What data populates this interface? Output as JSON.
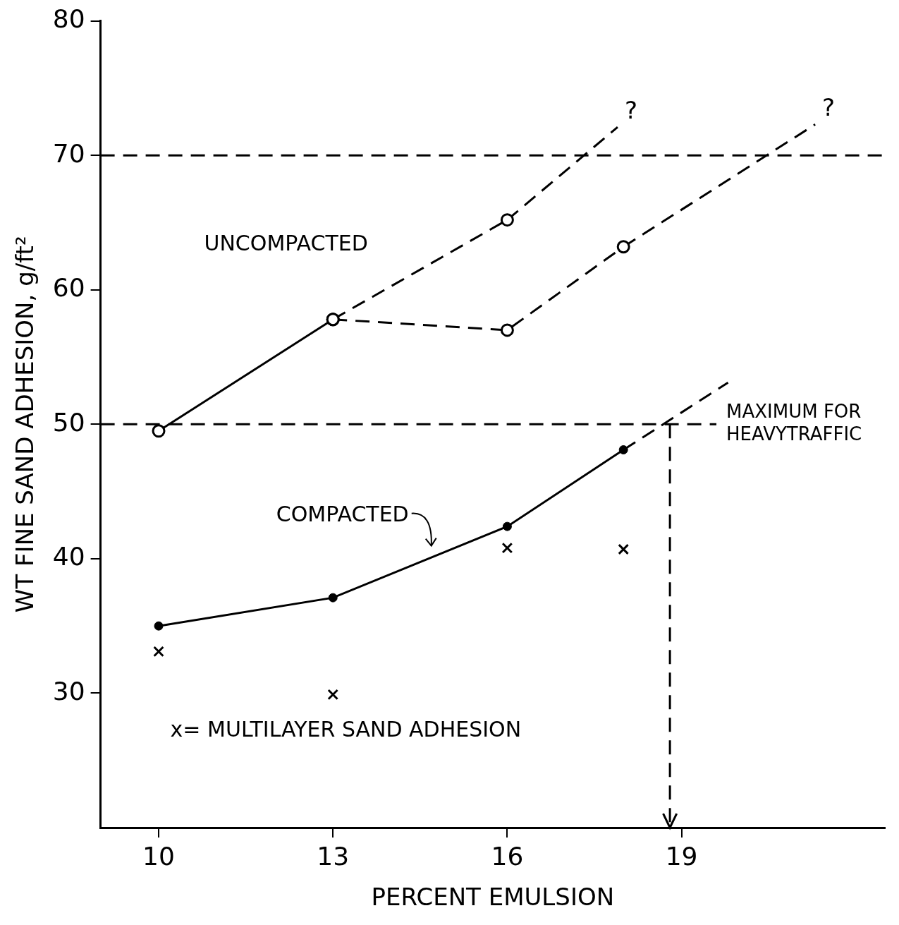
{
  "chart_data": {
    "type": "line",
    "x_label": "PERCENT EMULSION",
    "y_label": "WT FINE SAND ADHESION, g/ft²",
    "xlim": [
      9,
      22.5
    ],
    "ylim": [
      20,
      80
    ],
    "xticks": [
      10,
      13,
      16,
      19
    ],
    "yticks": [
      30,
      40,
      50,
      60,
      70,
      80
    ],
    "grid": false,
    "color": "#000000",
    "series": [
      {
        "x": [
          10,
          13
        ],
        "values": [
          49.5,
          57.8
        ],
        "marker": "open_circle",
        "line_style": "solid"
      },
      {
        "x": [
          13,
          16
        ],
        "values": [
          57.8,
          65.2
        ],
        "marker": "open_circle",
        "line_style": "dashed"
      },
      {
        "x": [
          13,
          16,
          18
        ],
        "values": [
          57.8,
          57.0,
          63.2
        ],
        "marker": "open_circle",
        "line_style": "dashed"
      },
      {
        "x": [
          16,
          17.9
        ],
        "values": [
          65.2,
          72.1
        ],
        "marker": "none",
        "line_style": "dashed",
        "end_label": "?"
      },
      {
        "x": [
          18,
          21.3
        ],
        "values": [
          63.2,
          72.3
        ],
        "marker": "none",
        "line_style": "dashed",
        "end_label": "?"
      },
      {
        "x": [
          10,
          13,
          16,
          18
        ],
        "values": [
          35.0,
          37.1,
          42.4,
          48.1
        ],
        "marker": "filled_circle",
        "line_style": "solid"
      },
      {
        "x": [
          18,
          19.8
        ],
        "values": [
          48.1,
          53.1
        ],
        "marker": "none",
        "line_style": "dashed"
      },
      {
        "x": [
          10,
          13,
          16,
          18
        ],
        "values": [
          33.1,
          29.9,
          40.8,
          40.7
        ],
        "marker": "cross",
        "line_style": "none"
      },
      {
        "x": [
          9,
          22.5
        ],
        "values": [
          70,
          70
        ],
        "marker": "none",
        "line_style": "dashed"
      },
      {
        "x": [
          9,
          19.6
        ],
        "values": [
          50,
          50
        ],
        "marker": "none",
        "line_style": "dashed",
        "end_label": "MAXIMUM FOR HEAVYTRAFFIC"
      },
      {
        "x": [
          18.8,
          18.8
        ],
        "values": [
          50,
          20
        ],
        "marker": "arrow",
        "line_style": "dashed"
      }
    ],
    "annotations": [
      "UNCOMPACTED",
      "COMPACTED",
      "x= MULTILAYER SAND ADHESION"
    ]
  }
}
